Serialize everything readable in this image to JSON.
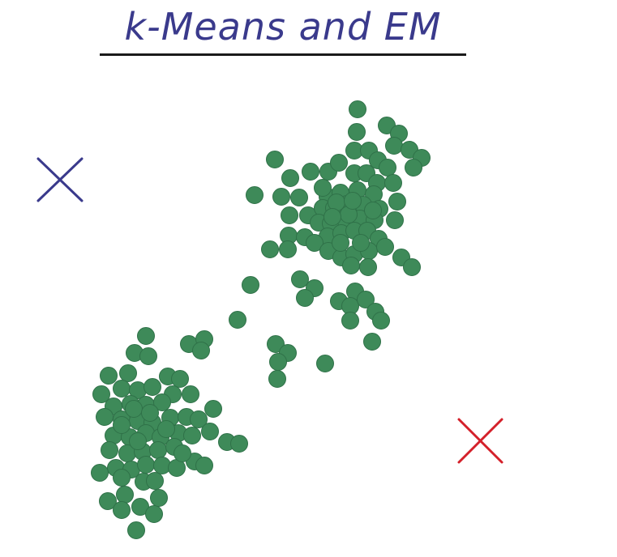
{
  "title": "k-Means and EM",
  "colors": {
    "title": "#3a3a8c",
    "points": "#3e8a59",
    "point_edge": "#2f7148",
    "center_blue": "#3a3a8c",
    "center_red": "#d4202a"
  },
  "centers": [
    {
      "name": "blue-center",
      "color_key": "center_blue"
    },
    {
      "name": "red-center",
      "color_key": "center_red"
    }
  ]
}
